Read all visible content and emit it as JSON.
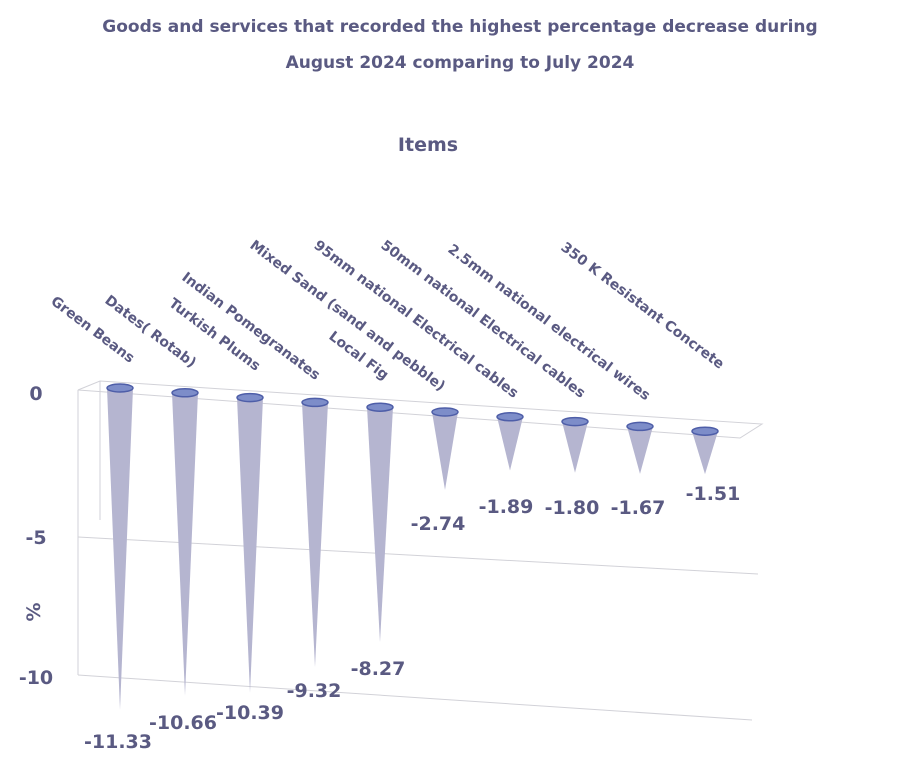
{
  "chart_data": {
    "type": "bar",
    "title_lines": [
      "Goods and services that recorded the highest percentage decrease during",
      "August 2024 comparing to July 2024"
    ],
    "xlabel": "Items",
    "ylabel": "%",
    "y_ticks": [
      "0",
      "-5",
      "-10"
    ],
    "ylim": [
      -12,
      0
    ],
    "categories": [
      "Green Beans",
      "Dates( Rotab)",
      "Turkish Plums",
      "Indian Pomegranates",
      "Local Fig",
      "Mixed Sand (sand and pebble)",
      "95mm national Electrical cables",
      "50mm national Electrical cables",
      "2.5mm national electrical wires",
      "350 K Resistant Concrete"
    ],
    "values": [
      -11.33,
      -10.66,
      -10.39,
      -9.32,
      -8.27,
      -2.74,
      -1.89,
      -1.8,
      -1.67,
      -1.51
    ],
    "value_labels": [
      "-11.33",
      "-10.66",
      "-10.39",
      "-9.32",
      "-8.27",
      "-2.74",
      "-1.89",
      "-1.80",
      "-1.67",
      "-1.51"
    ],
    "colors": {
      "cone": "#b5b5d0",
      "cap": "#7d8dc9",
      "text": "#5a5a82"
    },
    "grid": true,
    "legend": "none"
  }
}
